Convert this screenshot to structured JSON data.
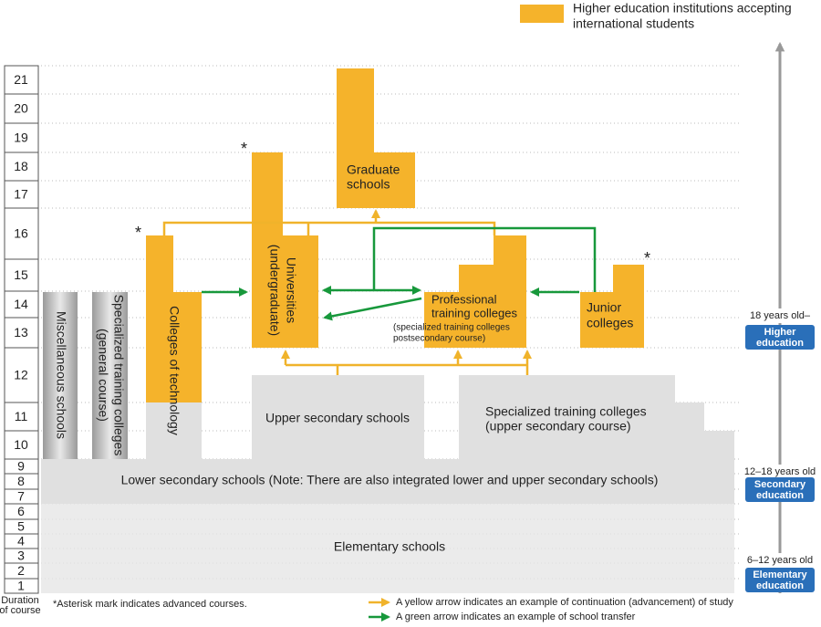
{
  "legend": {
    "lines": [
      "Higher education institutions accepting",
      "international students"
    ]
  },
  "years": {
    "caption": [
      "Duration",
      "of course"
    ],
    "values": [
      1,
      2,
      3,
      4,
      5,
      6,
      7,
      8,
      9,
      10,
      11,
      12,
      13,
      14,
      15,
      16,
      17,
      18,
      19,
      20,
      21
    ]
  },
  "stages": [
    {
      "age": "18 years old–",
      "label": [
        "Higher",
        "education"
      ]
    },
    {
      "age": "12–18 years old",
      "label": [
        "Secondary",
        "education"
      ]
    },
    {
      "age": "6–12 years old",
      "label": [
        "Elementary",
        "education"
      ]
    }
  ],
  "schools": {
    "graduate": [
      "Graduate",
      "schools"
    ],
    "universities": [
      "Universities",
      "(undergraduate)"
    ],
    "colleges_of_technology": "Colleges of technology",
    "professional": [
      "Professional",
      "training colleges",
      "(specialized training colleges",
      "postsecondary course)"
    ],
    "junior": [
      "Junior",
      "colleges"
    ],
    "miscellaneous": "Miscellaneous schools",
    "specialized_general": [
      "Specialized training colleges",
      "(general course)"
    ],
    "upper_secondary": "Upper secondary schools",
    "specialized_upper": [
      "Specialized training colleges",
      "(upper secondary course)"
    ],
    "lower_secondary": "Lower secondary schools (Note: There are also integrated lower and upper secondary schools)",
    "elementary": "Elementary schools"
  },
  "asterisk": "*",
  "notes": {
    "asterisk": "*Asterisk mark indicates advanced courses.",
    "yellow": "A yellow arrow indicates an example of continuation (advancement) of study",
    "green": "A green arrow indicates an example of school transfer"
  }
}
